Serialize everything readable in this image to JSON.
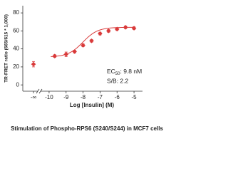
{
  "chart_data": {
    "type": "scatter",
    "title": "Stimulation of Phospho-RPS6 (S240/S244) in MCF7 cells",
    "x_label": "Log [Insulin] (M)",
    "y_label": "TR-FRET ratio (665/615 * 1,000)",
    "annotations": [
      {
        "parts": [
          "EC",
          "50",
          ": 9.8 nM"
        ]
      },
      {
        "parts": [
          "S/B: 2.2"
        ]
      }
    ],
    "baseline_point": {
      "label": "-∞",
      "value": 23,
      "error": 3
    },
    "x": [
      -9.67,
      -9,
      -8.5,
      -8,
      -7.5,
      -7,
      -6.5,
      -6,
      -5.5,
      -5
    ],
    "values": [
      32,
      34,
      37,
      44,
      49,
      57,
      60,
      62,
      64,
      63
    ],
    "errors": [
      1.5,
      2.5,
      1.5,
      1.5,
      1.5,
      1.5,
      1.5,
      1.5,
      1.5,
      1.5
    ],
    "fit": {
      "bottom": 31,
      "top": 64,
      "log_ec50": -8.01,
      "hill": 1
    },
    "color": "#d93a3a",
    "xlim": [
      -10.5,
      -4.5
    ],
    "xticks": [
      -10,
      -9,
      -8,
      -7,
      -6,
      -5
    ],
    "ylim": [
      -7,
      88
    ],
    "yticks": [
      0,
      20,
      40,
      60,
      80
    ]
  }
}
